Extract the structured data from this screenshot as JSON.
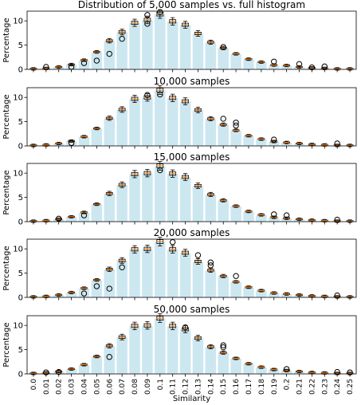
{
  "chart_data": [
    {
      "type": "bar",
      "title": "Distribution of 5,000 samples vs. full histogram",
      "xlabel": "",
      "ylabel": "Percentage",
      "ylim": [
        0,
        12
      ],
      "yticks": [
        0,
        5,
        10
      ],
      "grid": false,
      "categories": [
        "0.0",
        "0.01",
        "0.02",
        "0.03",
        "0.04",
        "0.05",
        "0.06",
        "0.07",
        "0.08",
        "0.09",
        "0.1",
        "0.11",
        "0.12",
        "0.13",
        "0.14",
        "0.15",
        "0.16",
        "0.17",
        "0.18",
        "0.19",
        "0.2",
        "0.21",
        "0.22",
        "0.23",
        "0.24",
        "0.25"
      ],
      "values": [
        0.1,
        0.2,
        0.5,
        1.0,
        1.9,
        3.6,
        5.9,
        7.7,
        9.6,
        10.2,
        11.4,
        9.9,
        9.2,
        7.4,
        5.6,
        4.4,
        3.2,
        2.1,
        1.5,
        0.9,
        0.8,
        0.5,
        0.3,
        0.2,
        0.1,
        0.1
      ],
      "outliers": [
        [
          1,
          0.5
        ],
        [
          3,
          0.5
        ],
        [
          4,
          1.3
        ],
        [
          5,
          1.8
        ],
        [
          6,
          3.2
        ],
        [
          7,
          6.3
        ],
        [
          9,
          11.2
        ],
        [
          9,
          9.4
        ],
        [
          10,
          11.8
        ],
        [
          15,
          4.6
        ],
        [
          19,
          1.6
        ],
        [
          21,
          1.1
        ],
        [
          22,
          0.4
        ],
        [
          23,
          0.6
        ]
      ]
    },
    {
      "type": "bar",
      "title": "10,000 samples",
      "xlabel": "",
      "ylabel": "Percentage",
      "ylim": [
        0,
        12
      ],
      "yticks": [
        0,
        5,
        10
      ],
      "grid": false,
      "categories": [
        "0.0",
        "0.01",
        "0.02",
        "0.03",
        "0.04",
        "0.05",
        "0.06",
        "0.07",
        "0.08",
        "0.09",
        "0.1",
        "0.11",
        "0.12",
        "0.13",
        "0.14",
        "0.15",
        "0.16",
        "0.17",
        "0.18",
        "0.19",
        "0.2",
        "0.21",
        "0.22",
        "0.23",
        "0.24",
        "0.25"
      ],
      "values": [
        0.1,
        0.2,
        0.5,
        1.0,
        1.9,
        3.6,
        5.7,
        7.5,
        9.7,
        10.0,
        11.5,
        9.9,
        9.2,
        7.4,
        5.6,
        4.4,
        3.2,
        2.1,
        1.4,
        0.9,
        0.7,
        0.5,
        0.3,
        0.2,
        0.1,
        0.1
      ],
      "outliers": [
        [
          3,
          0.6
        ],
        [
          9,
          10.5
        ],
        [
          10,
          10.6
        ],
        [
          15,
          5.6
        ],
        [
          16,
          4.8
        ],
        [
          16,
          4.2
        ],
        [
          19,
          1.3
        ],
        [
          24,
          0.5
        ]
      ]
    },
    {
      "type": "bar",
      "title": "15,000 samples",
      "xlabel": "",
      "ylabel": "Percentage",
      "ylim": [
        0,
        12
      ],
      "yticks": [
        0,
        5,
        10
      ],
      "grid": false,
      "categories": [
        "0.0",
        "0.01",
        "0.02",
        "0.03",
        "0.04",
        "0.05",
        "0.06",
        "0.07",
        "0.08",
        "0.09",
        "0.1",
        "0.11",
        "0.12",
        "0.13",
        "0.14",
        "0.15",
        "0.16",
        "0.17",
        "0.18",
        "0.19",
        "0.2",
        "0.21",
        "0.22",
        "0.23",
        "0.24",
        "0.25"
      ],
      "values": [
        0.1,
        0.2,
        0.5,
        1.0,
        1.9,
        3.6,
        5.8,
        7.6,
        9.8,
        10.0,
        11.5,
        9.9,
        9.2,
        7.4,
        5.6,
        4.4,
        3.2,
        2.1,
        1.4,
        0.9,
        0.7,
        0.5,
        0.3,
        0.2,
        0.1,
        0.1
      ],
      "outliers": [
        [
          2,
          0.6
        ],
        [
          4,
          1.3
        ],
        [
          10,
          10.6
        ],
        [
          19,
          1.5
        ],
        [
          20,
          1.3
        ],
        [
          24,
          0.4
        ]
      ]
    },
    {
      "type": "bar",
      "title": "20,000 samples",
      "xlabel": "",
      "ylabel": "Percentage",
      "ylim": [
        0,
        12
      ],
      "yticks": [
        0,
        5,
        10
      ],
      "grid": false,
      "categories": [
        "0.0",
        "0.01",
        "0.02",
        "0.03",
        "0.04",
        "0.05",
        "0.06",
        "0.07",
        "0.08",
        "0.09",
        "0.1",
        "0.11",
        "0.12",
        "0.13",
        "0.14",
        "0.15",
        "0.16",
        "0.17",
        "0.18",
        "0.19",
        "0.2",
        "0.21",
        "0.22",
        "0.23",
        "0.24",
        "0.25"
      ],
      "values": [
        0.1,
        0.2,
        0.5,
        1.0,
        1.9,
        3.6,
        5.8,
        7.6,
        9.9,
        10.0,
        11.5,
        9.9,
        9.2,
        7.4,
        5.6,
        4.4,
        3.2,
        2.1,
        1.4,
        0.9,
        0.7,
        0.5,
        0.3,
        0.2,
        0.1,
        0.1
      ],
      "outliers": [
        [
          4,
          0.8
        ],
        [
          5,
          2.3
        ],
        [
          6,
          1.8
        ],
        [
          7,
          6.2
        ],
        [
          11,
          11.4
        ],
        [
          13,
          8.7
        ],
        [
          14,
          7.2
        ],
        [
          14,
          6.6
        ],
        [
          16,
          4.4
        ],
        [
          24,
          0.4
        ]
      ]
    },
    {
      "type": "bar",
      "title": "50,000 samples",
      "xlabel": "Similarity",
      "ylabel": "Percentage",
      "ylim": [
        0,
        12
      ],
      "yticks": [
        0,
        5,
        10
      ],
      "grid": false,
      "categories": [
        "0.0",
        "0.01",
        "0.02",
        "0.03",
        "0.04",
        "0.05",
        "0.06",
        "0.07",
        "0.08",
        "0.09",
        "0.1",
        "0.11",
        "0.12",
        "0.13",
        "0.14",
        "0.15",
        "0.16",
        "0.17",
        "0.18",
        "0.19",
        "0.2",
        "0.21",
        "0.22",
        "0.23",
        "0.24",
        "0.25"
      ],
      "values": [
        0.1,
        0.2,
        0.5,
        1.0,
        1.9,
        3.6,
        5.8,
        7.6,
        9.9,
        10.0,
        11.5,
        9.9,
        9.2,
        7.4,
        5.6,
        4.4,
        3.2,
        2.1,
        1.4,
        0.9,
        0.7,
        0.5,
        0.3,
        0.2,
        0.1,
        0.1
      ],
      "outliers": [
        [
          1,
          0.3
        ],
        [
          2,
          0.4
        ],
        [
          6,
          3.5
        ],
        [
          12,
          9.6
        ],
        [
          15,
          5.9
        ],
        [
          15,
          5.5
        ],
        [
          20,
          1.0
        ],
        [
          24,
          0.4
        ],
        [
          25,
          0.3
        ]
      ]
    }
  ],
  "colors": {
    "bar": "#cce7f0",
    "bar_edge": "#ffffff",
    "box": "#000000",
    "median": "#ff7f0e",
    "outlier": "#000000"
  }
}
